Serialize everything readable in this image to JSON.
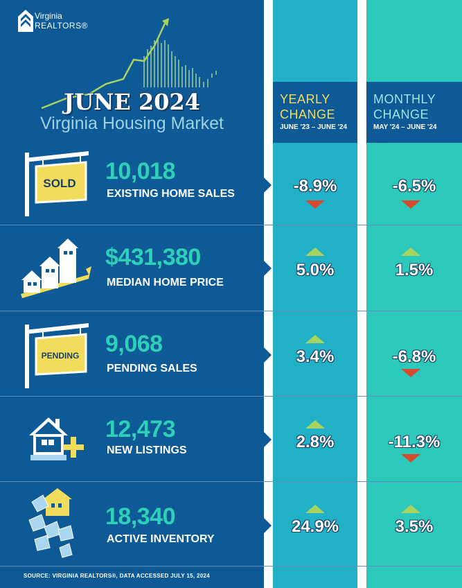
{
  "header": {
    "logo_line1": "Virginia",
    "logo_line2": "REALTORS®",
    "title": "JUNE 2024",
    "subtitle": "Virginia Housing Market"
  },
  "columns": {
    "yearly": {
      "line1": "YEARLY",
      "line2": "CHANGE",
      "range": "JUNE '23 – JUNE '24"
    },
    "monthly": {
      "line1": "MONTHLY",
      "line2": "CHANGE",
      "range": "MAY '24 – JUNE '24"
    }
  },
  "metrics": [
    {
      "value": "10,018",
      "label": "EXISTING HOME SALES",
      "icon": "sold-sign-icon",
      "sign_text": "SOLD",
      "yearly": "-8.9%",
      "yearly_dir": "down",
      "monthly": "-6.5%",
      "monthly_dir": "down"
    },
    {
      "value": "$431,380",
      "label": "MEDIAN HOME PRICE",
      "icon": "rising-houses-icon",
      "yearly": "5.0%",
      "yearly_dir": "up",
      "monthly": "1.5%",
      "monthly_dir": "up"
    },
    {
      "value": "9,068",
      "label": "PENDING SALES",
      "icon": "pending-sign-icon",
      "sign_text": "PENDING",
      "yearly": "3.4%",
      "yearly_dir": "up",
      "monthly": "-6.8%",
      "monthly_dir": "down"
    },
    {
      "value": "12,473",
      "label": "NEW LISTINGS",
      "icon": "house-plus-icon",
      "yearly": "2.8%",
      "yearly_dir": "up",
      "monthly": "-11.3%",
      "monthly_dir": "down"
    },
    {
      "value": "18,340",
      "label": "ACTIVE INVENTORY",
      "icon": "house-stack-icon",
      "yearly": "24.9%",
      "yearly_dir": "up",
      "monthly": "3.5%",
      "monthly_dir": "up"
    }
  ],
  "footer": {
    "source": "SOURCE: VIRGINIA REALTORS®, DATA ACCESSED JULY 15, 2024"
  },
  "colors": {
    "navy": "#0d5a97",
    "teal": "#21b1c6",
    "mint": "#2cc9ba",
    "value": "#2fd0b8",
    "up": "#a8d35e",
    "down": "#d64a2e",
    "yellow": "#f1dc5c"
  }
}
